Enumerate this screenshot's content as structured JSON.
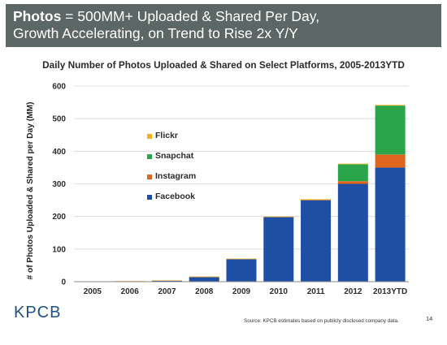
{
  "header": {
    "title_bold": "Photos",
    "title_rest": " = 500MM+ Uploaded & Shared Per Day,",
    "line2": "Growth Accelerating, on Trend to Rise 2x Y/Y"
  },
  "chart_data": {
    "type": "bar",
    "stacked": true,
    "title": "Daily Number of Photos Uploaded & Shared on Select Platforms, 2005-2013YTD",
    "xlabel": "",
    "ylabel": "# of Photos Uploaded & Shared per Day (MM)",
    "ylim": [
      0,
      600
    ],
    "yticks": [
      0,
      100,
      200,
      300,
      400,
      500,
      600
    ],
    "grid": true,
    "legend_position": "top-left",
    "categories": [
      "2005",
      "2006",
      "2007",
      "2008",
      "2009",
      "2010",
      "2011",
      "2012",
      "2013YTD"
    ],
    "series": [
      {
        "name": "Facebook",
        "color": "#1f4fa5",
        "values": [
          0,
          1,
          3,
          14,
          69,
          198,
          250,
          300,
          350
        ]
      },
      {
        "name": "Instagram",
        "color": "#e0651f",
        "values": [
          0,
          0,
          0,
          0,
          0,
          0,
          1,
          8,
          40
        ]
      },
      {
        "name": "Snapchat",
        "color": "#2aa549",
        "values": [
          0,
          0,
          0,
          0,
          0,
          0,
          0,
          52,
          150
        ]
      },
      {
        "name": "Flickr",
        "color": "#f4b31a",
        "values": [
          0,
          1,
          1,
          2,
          2,
          2,
          2,
          2,
          2
        ]
      }
    ],
    "legend_order": [
      "Flickr",
      "Snapchat",
      "Instagram",
      "Facebook"
    ]
  },
  "footer": {
    "logo": "KPCB",
    "source": "Source: KPCB estimates based on publicly disclosed company data.",
    "page": "14"
  }
}
